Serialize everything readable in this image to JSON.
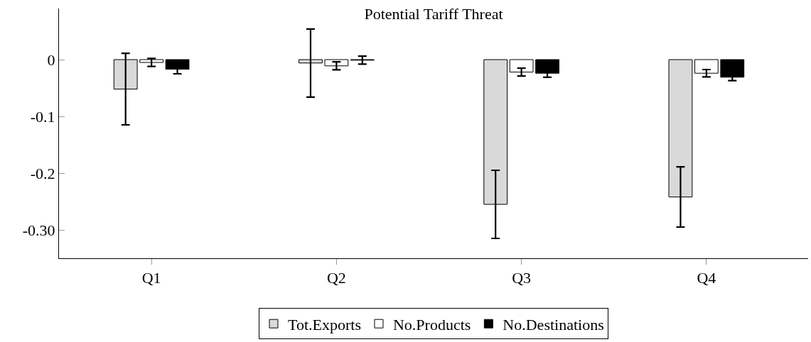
{
  "chart_data": {
    "type": "bar",
    "title": "Potential Tariff Threat",
    "categories": [
      "Q1",
      "Q2",
      "Q3",
      "Q4"
    ],
    "series": [
      {
        "name": "Tot.Exports",
        "color": "#d9d9d9",
        "values": [
          -0.052,
          -0.006,
          -0.255,
          -0.242
        ],
        "errors": [
          0.063,
          0.06,
          0.06,
          0.053
        ]
      },
      {
        "name": "No.Products",
        "color": "#ffffff",
        "values": [
          -0.005,
          -0.011,
          -0.022,
          -0.024
        ],
        "errors": [
          0.007,
          0.007,
          0.007,
          0.0065
        ]
      },
      {
        "name": "No.Destinations",
        "color": "#000000",
        "values": [
          -0.017,
          -0.001,
          -0.024,
          -0.031
        ],
        "errors": [
          0.008,
          0.007,
          0.007,
          0.006
        ]
      }
    ],
    "ylim": [
      -0.35,
      0.09
    ],
    "yticks": [
      0,
      -0.1,
      -0.2,
      {
        "value": -0.3,
        "label": "-0.30"
      }
    ],
    "legend": "bottom"
  }
}
